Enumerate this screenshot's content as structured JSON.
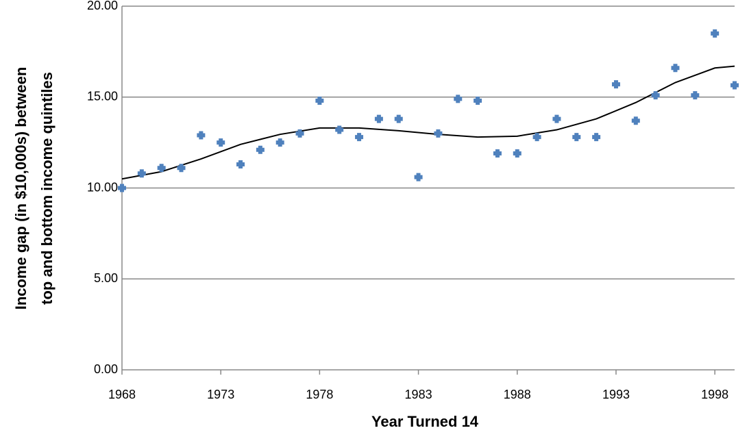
{
  "chart_data": {
    "type": "scatter",
    "x_label": "Year Turned 14",
    "y_label": [
      "Income gap (in $10,000s) between",
      "top and bottom income quintiles"
    ],
    "x": [
      1968,
      1969,
      1970,
      1971,
      1972,
      1973,
      1974,
      1975,
      1976,
      1977,
      1978,
      1979,
      1980,
      1981,
      1982,
      1983,
      1984,
      1985,
      1986,
      1987,
      1988,
      1989,
      1990,
      1991,
      1992,
      1993,
      1994,
      1995,
      1996,
      1997,
      1998,
      1999
    ],
    "values": [
      10.0,
      10.8,
      11.1,
      11.1,
      12.9,
      12.5,
      11.3,
      12.1,
      12.5,
      13.0,
      14.8,
      13.2,
      12.8,
      13.8,
      13.8,
      10.6,
      13.0,
      14.9,
      14.8,
      11.9,
      11.9,
      12.8,
      13.8,
      12.8,
      12.8,
      15.7,
      13.7,
      15.1,
      16.6,
      15.1,
      18.5,
      15.65
    ],
    "color": "#4f81bd",
    "trend": {
      "color": "#000000",
      "x": [
        1968,
        1970,
        1972,
        1974,
        1976,
        1978,
        1980,
        1982,
        1984,
        1986,
        1988,
        1990,
        1992,
        1994,
        1996,
        1998,
        1999
      ],
      "values": [
        10.5,
        10.9,
        11.6,
        12.4,
        12.95,
        13.3,
        13.3,
        13.15,
        12.95,
        12.8,
        12.85,
        13.2,
        13.8,
        14.7,
        15.8,
        16.6,
        16.7
      ]
    },
    "xlim": [
      1968,
      1999
    ],
    "xticks": [
      1968,
      1973,
      1978,
      1983,
      1988,
      1993,
      1998
    ],
    "ylim": [
      0,
      20
    ],
    "yticks": [
      {
        "value": 0,
        "label": "0.00"
      },
      {
        "value": 5,
        "label": "5.00"
      },
      {
        "value": 10,
        "label": "10.00"
      },
      {
        "value": 15,
        "label": "15.00"
      },
      {
        "value": 20,
        "label": "20.00"
      }
    ],
    "grid": true
  }
}
